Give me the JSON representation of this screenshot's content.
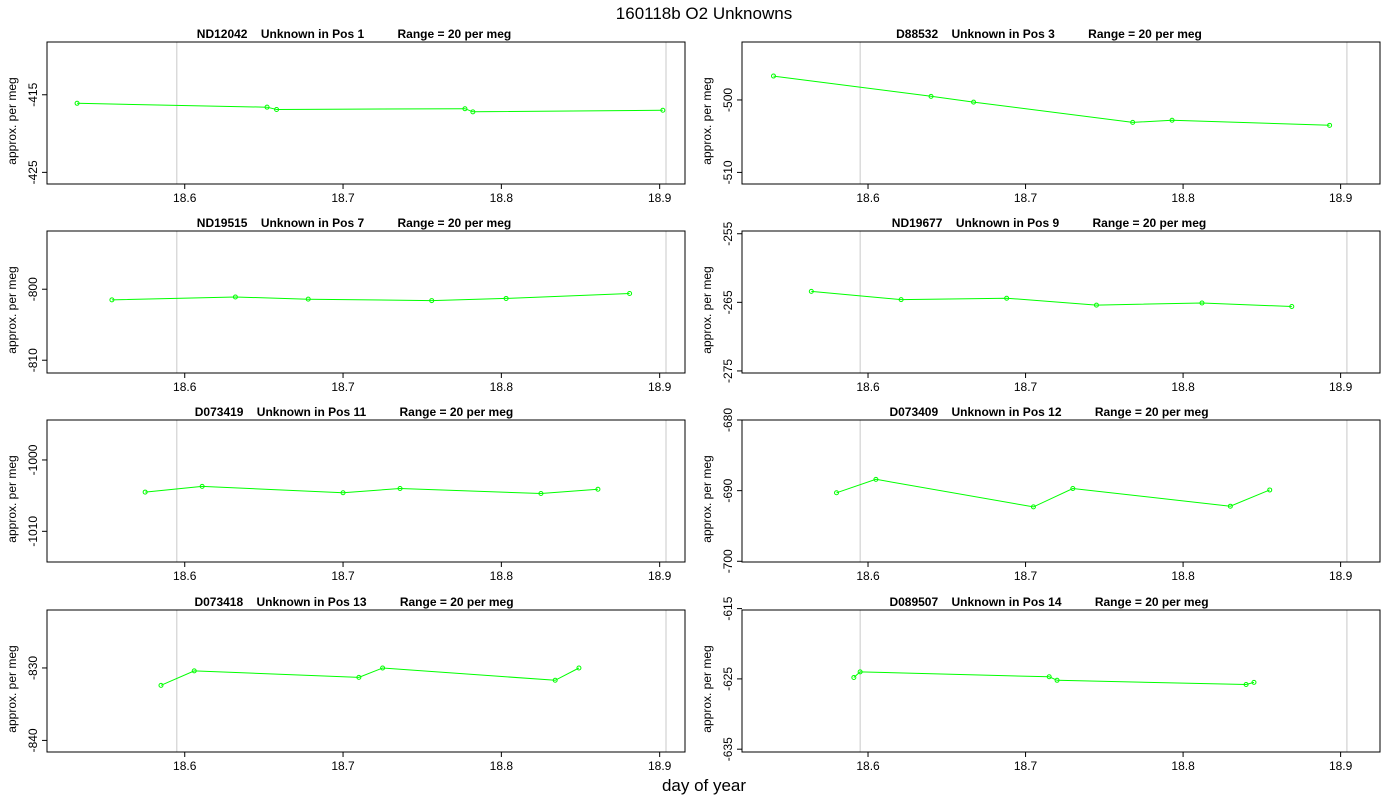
{
  "title": "160118b  O2 Unknowns",
  "xlabel": "day of year",
  "colors": {
    "series": "#00ff00",
    "reference_line": "#c8c8c8",
    "axis": "#000000"
  },
  "chart_data": [
    {
      "type": "line",
      "title": "ND12042    Unknown in Pos 1          Range = 20 per meg",
      "ylabel": "approx. per meg",
      "xlim": [
        18.513,
        18.916
      ],
      "ylim": [
        -426.5,
        -408.2
      ],
      "xticks": [
        18.6,
        18.7,
        18.8,
        18.9
      ],
      "yticks": [
        -415,
        -425
      ],
      "reference_lines_x": [
        18.595,
        18.904
      ],
      "x": [
        18.532,
        18.652,
        18.658,
        18.777,
        18.782,
        18.902
      ],
      "y": [
        -416.1,
        -416.6,
        -416.9,
        -416.8,
        -417.2,
        -417.0
      ]
    },
    {
      "type": "line",
      "title": "D88532    Unknown in Pos 3          Range = 20 per meg",
      "ylabel": "approx. per meg",
      "xlim": [
        18.52,
        18.925
      ],
      "ylim": [
        -511.6,
        -492.0
      ],
      "xticks": [
        18.6,
        18.7,
        18.8,
        18.9
      ],
      "yticks": [
        -500,
        -510
      ],
      "reference_lines_x": [
        18.595,
        18.904
      ],
      "x": [
        18.54,
        18.64,
        18.667,
        18.768,
        18.793,
        18.893
      ],
      "y": [
        -496.7,
        -499.5,
        -500.3,
        -503.1,
        -502.8,
        -503.5
      ]
    },
    {
      "type": "line",
      "title": "ND19515    Unknown in Pos 7          Range = 20 per meg",
      "ylabel": "approx. per meg",
      "xlim": [
        18.513,
        18.916
      ],
      "ylim": [
        -811.8,
        -791.8
      ],
      "xticks": [
        18.6,
        18.7,
        18.8,
        18.9
      ],
      "yticks": [
        -800,
        -810
      ],
      "reference_lines_x": [
        18.595,
        18.904
      ],
      "x": [
        18.554,
        18.632,
        18.678,
        18.756,
        18.803,
        18.881
      ],
      "y": [
        -801.5,
        -801.1,
        -801.4,
        -801.6,
        -801.3,
        -800.6
      ]
    },
    {
      "type": "line",
      "title": "ND19677    Unknown in Pos 9          Range = 20 per meg",
      "ylabel": "approx. per meg",
      "xlim": [
        18.52,
        18.925
      ],
      "ylim": [
        -275.3,
        -254.6
      ],
      "xticks": [
        18.6,
        18.7,
        18.8,
        18.9
      ],
      "yticks": [
        -255,
        -265,
        -275
      ],
      "reference_lines_x": [
        18.595,
        18.904
      ],
      "x": [
        18.564,
        18.621,
        18.688,
        18.745,
        18.812,
        18.869
      ],
      "y": [
        -263.4,
        -264.6,
        -264.4,
        -265.4,
        -265.1,
        -265.6
      ]
    },
    {
      "type": "line",
      "title": "D073419    Unknown in Pos 11          Range = 20 per meg",
      "ylabel": "approx. per meg",
      "xlim": [
        18.513,
        18.916
      ],
      "ylim": [
        -1014.3,
        -994.4
      ],
      "xticks": [
        18.6,
        18.7,
        18.8,
        18.9
      ],
      "yticks": [
        -1000,
        -1010
      ],
      "reference_lines_x": [
        18.595,
        18.904
      ],
      "x": [
        18.575,
        18.611,
        18.7,
        18.736,
        18.825,
        18.861
      ],
      "y": [
        -1004.5,
        -1003.7,
        -1004.6,
        -1004.0,
        -1004.7,
        -1004.1
      ]
    },
    {
      "type": "line",
      "title": "D073409    Unknown in Pos 12          Range = 20 per meg",
      "ylabel": "approx. per meg",
      "xlim": [
        18.52,
        18.925
      ],
      "ylim": [
        -700.1,
        -680.0
      ],
      "xticks": [
        18.6,
        18.7,
        18.8,
        18.9
      ],
      "yticks": [
        -680,
        -690,
        -700
      ],
      "reference_lines_x": [
        18.595,
        18.904
      ],
      "x": [
        18.58,
        18.605,
        18.705,
        18.73,
        18.83,
        18.855
      ],
      "y": [
        -690.3,
        -688.4,
        -692.3,
        -689.7,
        -692.2,
        -689.9
      ]
    },
    {
      "type": "line",
      "title": "D073418    Unknown in Pos 13          Range = 20 per meg",
      "ylabel": "approx. per meg",
      "xlim": [
        18.513,
        18.916
      ],
      "ylim": [
        -841.6,
        -822.0
      ],
      "xticks": [
        18.6,
        18.7,
        18.8,
        18.9
      ],
      "yticks": [
        -830,
        -840
      ],
      "reference_lines_x": [
        18.595,
        18.904
      ],
      "x": [
        18.585,
        18.606,
        18.71,
        18.725,
        18.834,
        18.849
      ],
      "y": [
        -832.4,
        -830.4,
        -831.3,
        -830.0,
        -831.7,
        -830.0
      ]
    },
    {
      "type": "line",
      "title": "D089507    Unknown in Pos 14          Range = 20 per meg",
      "ylabel": "approx. per meg",
      "xlim": [
        18.52,
        18.925
      ],
      "ylim": [
        -635.4,
        -615.2
      ],
      "xticks": [
        18.6,
        18.7,
        18.8,
        18.9
      ],
      "yticks": [
        -615,
        -625,
        -635
      ],
      "reference_lines_x": [
        18.595,
        18.904
      ],
      "x": [
        18.591,
        18.595,
        18.715,
        18.72,
        18.84,
        18.845
      ],
      "y": [
        -624.8,
        -624.0,
        -624.7,
        -625.2,
        -625.8,
        -625.5
      ]
    }
  ]
}
